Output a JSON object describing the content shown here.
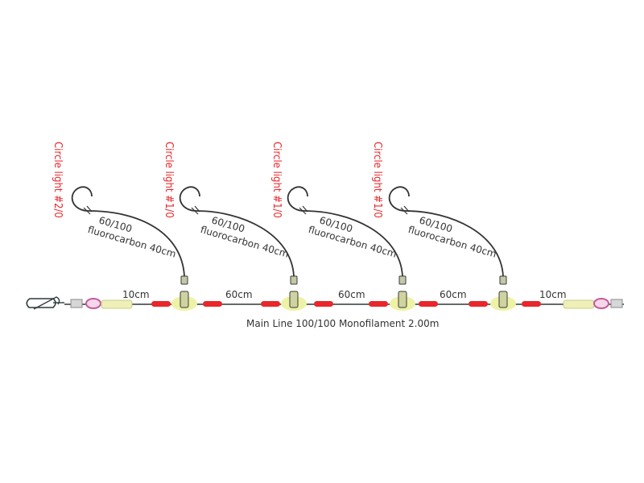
{
  "colors": {
    "bead": "#e8262b",
    "line": "#2f3a3a",
    "swivel_glow": "#eef2a6",
    "loop": "#c45a9a",
    "sleeve": "#eef0b8",
    "label_red": "#e8262b",
    "text": "#333333"
  },
  "hooks": [
    {
      "label": "Circle light #2/0",
      "leader_line1": "60/100",
      "leader_line2": "fluorocarbon 40cm"
    },
    {
      "label": "Circle light #1/0",
      "leader_line1": "60/100",
      "leader_line2": "fluorocarbon 40cm"
    },
    {
      "label": "Circle light #1/0",
      "leader_line1": "60/100",
      "leader_line2": "fluorocarbon 40cm"
    },
    {
      "label": "Circle light #1/0",
      "leader_line1": "60/100",
      "leader_line2": "fluorocarbon 40cm"
    }
  ],
  "segments": [
    "10cm",
    "60cm",
    "60cm",
    "60cm",
    "10cm"
  ],
  "main_line_label": "Main Line 100/100 Monofilament 2.00m"
}
